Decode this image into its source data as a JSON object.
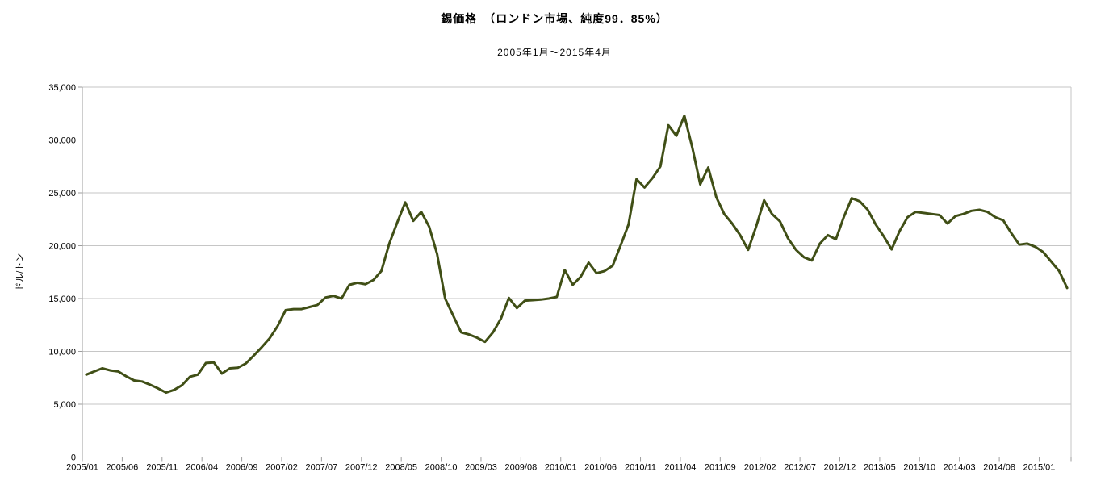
{
  "header": {
    "title": "錫価格　（ロンドン市場、純度99．85%）",
    "subtitle": "2005年1月～2015年4月"
  },
  "chart_data": {
    "type": "line",
    "title": "錫価格　（ロンドン市場、純度99．85%）",
    "subtitle": "2005年1月～2015年4月",
    "xlabel": "",
    "ylabel": "ドル/トン",
    "ylim": [
      0,
      35000
    ],
    "ytick_step": 5000,
    "ytick_labels": [
      "0",
      "5,000",
      "10,000",
      "15,000",
      "20,000",
      "25,000",
      "30,000",
      "35,000"
    ],
    "x_tick_every": 5,
    "x_tick_labels": [
      "2005/01",
      "2005/06",
      "2005/11",
      "2006/04",
      "2006/09",
      "2007/02",
      "2007/07",
      "2007/12",
      "2008/05",
      "2008/10",
      "2009/03",
      "2009/08",
      "2010/01",
      "2010/06",
      "2010/11",
      "2011/04",
      "2011/09",
      "2012/02",
      "2012/07",
      "2012/12",
      "2013/05",
      "2013/10",
      "2014/03",
      "2014/08",
      "2015/01"
    ],
    "grid": true,
    "legend": "none",
    "line_color": "#404f16",
    "grid_color": "#c6c6c6",
    "axis_color": "#9e9e9e",
    "text_color": "#000000",
    "x": [
      "2005/01",
      "2005/02",
      "2005/03",
      "2005/04",
      "2005/05",
      "2005/06",
      "2005/07",
      "2005/08",
      "2005/09",
      "2005/10",
      "2005/11",
      "2005/12",
      "2006/01",
      "2006/02",
      "2006/03",
      "2006/04",
      "2006/05",
      "2006/06",
      "2006/07",
      "2006/08",
      "2006/09",
      "2006/10",
      "2006/11",
      "2006/12",
      "2007/01",
      "2007/02",
      "2007/03",
      "2007/04",
      "2007/05",
      "2007/06",
      "2007/07",
      "2007/08",
      "2007/09",
      "2007/10",
      "2007/11",
      "2007/12",
      "2008/01",
      "2008/02",
      "2008/03",
      "2008/04",
      "2008/05",
      "2008/06",
      "2008/07",
      "2008/08",
      "2008/09",
      "2008/10",
      "2008/11",
      "2008/12",
      "2009/01",
      "2009/02",
      "2009/03",
      "2009/04",
      "2009/05",
      "2009/06",
      "2009/07",
      "2009/08",
      "2009/09",
      "2009/10",
      "2009/11",
      "2009/12",
      "2010/01",
      "2010/02",
      "2010/03",
      "2010/04",
      "2010/05",
      "2010/06",
      "2010/07",
      "2010/08",
      "2010/09",
      "2010/10",
      "2010/11",
      "2010/12",
      "2011/01",
      "2011/02",
      "2011/03",
      "2011/04",
      "2011/05",
      "2011/06",
      "2011/07",
      "2011/08",
      "2011/09",
      "2011/10",
      "2011/11",
      "2011/12",
      "2012/01",
      "2012/02",
      "2012/03",
      "2012/04",
      "2012/05",
      "2012/06",
      "2012/07",
      "2012/08",
      "2012/09",
      "2012/10",
      "2012/11",
      "2012/12",
      "2013/01",
      "2013/02",
      "2013/03",
      "2013/04",
      "2013/05",
      "2013/06",
      "2013/07",
      "2013/08",
      "2013/09",
      "2013/10",
      "2013/11",
      "2013/12",
      "2014/01",
      "2014/02",
      "2014/03",
      "2014/04",
      "2014/05",
      "2014/06",
      "2014/07",
      "2014/08",
      "2014/09",
      "2014/10",
      "2014/11",
      "2014/12",
      "2015/01",
      "2015/02",
      "2015/03",
      "2015/04"
    ],
    "series": [
      {
        "name": "錫価格（ドル/トン）",
        "values": [
          7800,
          8100,
          8400,
          8200,
          8100,
          7650,
          7250,
          7150,
          6850,
          6500,
          6100,
          6350,
          6800,
          7600,
          7800,
          8900,
          8950,
          7900,
          8400,
          8450,
          8850,
          9600,
          10400,
          11250,
          12400,
          13900,
          14000,
          14000,
          14200,
          14400,
          15100,
          15250,
          15000,
          16300,
          16500,
          16350,
          16750,
          17600,
          20200,
          22200,
          24100,
          22350,
          23200,
          21800,
          19200,
          15000,
          13400,
          11800,
          11600,
          11300,
          10900,
          11800,
          13100,
          15050,
          14100,
          14800,
          14850,
          14900,
          15000,
          15150,
          17700,
          16300,
          17050,
          18400,
          17400,
          17600,
          18100,
          20000,
          22000,
          26300,
          25500,
          26400,
          27500,
          31400,
          30400,
          32300,
          29300,
          25800,
          27400,
          24600,
          23000,
          22100,
          21000,
          19600,
          21800,
          24300,
          23000,
          22300,
          20700,
          19600,
          18900,
          18600,
          20200,
          21000,
          20600,
          22700,
          24500,
          24200,
          23400,
          22000,
          20900,
          19650,
          21400,
          22700,
          23200,
          23100,
          23000,
          22900,
          22100,
          22800,
          23000,
          23300,
          23400,
          23200,
          22700,
          22400,
          21200,
          20100,
          20200,
          19900,
          19400,
          18500,
          17600,
          16000
        ]
      }
    ]
  }
}
